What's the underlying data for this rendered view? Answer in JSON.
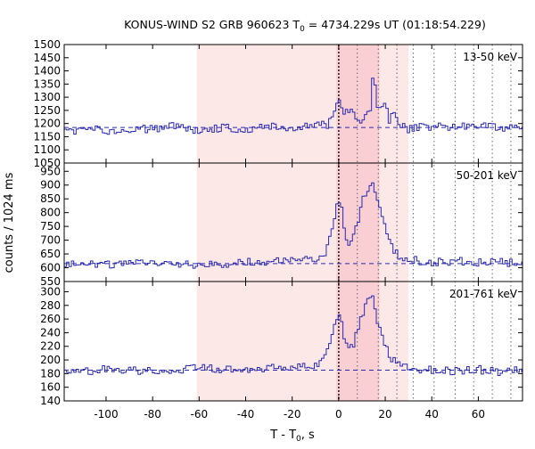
{
  "chart_data": {
    "type": "line",
    "title_prefix": "KONUS-WIND S2 GRB 960623 T",
    "title_sub": "0",
    "title_suffix": " = 4734.229s UT (01:18:54.229)",
    "xlabel_prefix": "T - T",
    "xlabel_sub": "0",
    "xlabel_suffix": ", s",
    "ylabel": "counts / 1024 ms",
    "xlim": [
      -118,
      79
    ],
    "xticks": [
      -100,
      -80,
      -60,
      -40,
      -20,
      0,
      20,
      40,
      60
    ],
    "shaded_regions": [
      {
        "from": -61.0,
        "to": 30.0,
        "color": "#fde8e8"
      },
      {
        "from": -1.0,
        "to": 17.5,
        "color": "#f9cfd3"
      }
    ],
    "dotted_lines": [
      0,
      8.0,
      17.0,
      25.0,
      32.0,
      41.0,
      50.0,
      58.0,
      66.0,
      74.0
    ],
    "thick_dotted_line": 0,
    "bin_width": 1.024,
    "x_start": -118,
    "panels": [
      {
        "label": "13-50 keV",
        "ylim": [
          1050,
          1500
        ],
        "yticks": [
          1050,
          1100,
          1150,
          1200,
          1250,
          1300,
          1350,
          1400,
          1450,
          1500
        ],
        "background": 1185,
        "segments": [
          [
            -118,
            1165
          ],
          [
            -108,
            1185
          ],
          [
            -100,
            1170
          ],
          [
            -90,
            1180
          ],
          [
            -80,
            1178
          ],
          [
            -70,
            1190
          ],
          [
            -60,
            1175
          ],
          [
            -50,
            1185
          ],
          [
            -40,
            1180
          ],
          [
            -30,
            1190
          ],
          [
            -20,
            1180
          ],
          [
            -10,
            1195
          ],
          [
            -5,
            1195
          ],
          [
            -2,
            1230
          ],
          [
            0,
            1290
          ],
          [
            2,
            1255
          ],
          [
            4,
            1230
          ],
          [
            6,
            1260
          ],
          [
            8,
            1210
          ],
          [
            10,
            1200
          ],
          [
            12,
            1225
          ],
          [
            14,
            1270
          ],
          [
            15,
            1440
          ],
          [
            16,
            1300
          ],
          [
            17,
            1260
          ],
          [
            18,
            1240
          ],
          [
            20,
            1265
          ],
          [
            22,
            1210
          ],
          [
            24,
            1240
          ],
          [
            26,
            1205
          ],
          [
            28,
            1190
          ],
          [
            30,
            1180
          ],
          [
            40,
            1190
          ],
          [
            50,
            1185
          ],
          [
            60,
            1190
          ],
          [
            70,
            1180
          ],
          [
            79,
            1185
          ]
        ]
      },
      {
        "label": "50-201 keV",
        "ylim": [
          550,
          980
        ],
        "yticks": [
          550,
          600,
          650,
          700,
          750,
          800,
          850,
          900,
          950
        ],
        "background": 615,
        "segments": [
          [
            -118,
            615
          ],
          [
            -100,
            612
          ],
          [
            -80,
            618
          ],
          [
            -60,
            610
          ],
          [
            -40,
            620
          ],
          [
            -20,
            625
          ],
          [
            -10,
            630
          ],
          [
            -6,
            650
          ],
          [
            -4,
            700
          ],
          [
            -2,
            780
          ],
          [
            0,
            840
          ],
          [
            1,
            820
          ],
          [
            2,
            770
          ],
          [
            3,
            720
          ],
          [
            4,
            680
          ],
          [
            6,
            700
          ],
          [
            8,
            760
          ],
          [
            10,
            840
          ],
          [
            12,
            880
          ],
          [
            14,
            900
          ],
          [
            15,
            920
          ],
          [
            16,
            870
          ],
          [
            18,
            820
          ],
          [
            20,
            760
          ],
          [
            22,
            700
          ],
          [
            24,
            660
          ],
          [
            26,
            640
          ],
          [
            30,
            630
          ],
          [
            40,
            620
          ],
          [
            50,
            625
          ],
          [
            60,
            618
          ],
          [
            70,
            622
          ],
          [
            79,
            615
          ]
        ]
      },
      {
        "label": "201-761 keV",
        "ylim": [
          140,
          315
        ],
        "yticks": [
          140,
          160,
          180,
          200,
          220,
          240,
          260,
          280,
          300
        ],
        "background": 185,
        "segments": [
          [
            -118,
            182
          ],
          [
            -100,
            186
          ],
          [
            -80,
            184
          ],
          [
            -60,
            188
          ],
          [
            -40,
            186
          ],
          [
            -20,
            190
          ],
          [
            -10,
            192
          ],
          [
            -6,
            205
          ],
          [
            -4,
            225
          ],
          [
            -2,
            250
          ],
          [
            0,
            270
          ],
          [
            2,
            240
          ],
          [
            4,
            215
          ],
          [
            6,
            220
          ],
          [
            8,
            240
          ],
          [
            10,
            265
          ],
          [
            12,
            280
          ],
          [
            14,
            300
          ],
          [
            15,
            285
          ],
          [
            16,
            260
          ],
          [
            18,
            240
          ],
          [
            20,
            220
          ],
          [
            22,
            205
          ],
          [
            26,
            195
          ],
          [
            30,
            188
          ],
          [
            40,
            186
          ],
          [
            50,
            184
          ],
          [
            60,
            186
          ],
          [
            70,
            182
          ],
          [
            79,
            185
          ]
        ]
      }
    ]
  }
}
